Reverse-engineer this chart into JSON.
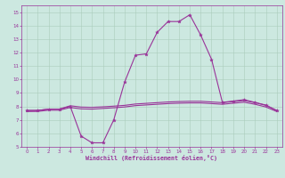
{
  "xlabel": "Windchill (Refroidissement éolien,°C)",
  "xlim": [
    -0.5,
    23.5
  ],
  "ylim": [
    5,
    15.5
  ],
  "xticks": [
    0,
    1,
    2,
    3,
    4,
    5,
    6,
    7,
    8,
    9,
    10,
    11,
    12,
    13,
    14,
    15,
    16,
    17,
    18,
    19,
    20,
    21,
    22,
    23
  ],
  "yticks": [
    5,
    6,
    7,
    8,
    9,
    10,
    11,
    12,
    13,
    14,
    15
  ],
  "background_color": "#cce8e0",
  "line_color": "#993399",
  "grid_color": "#aaccbb",
  "line1_x": [
    0,
    1,
    2,
    3,
    4,
    5,
    6,
    7,
    8,
    9,
    10,
    11,
    12,
    13,
    14,
    15,
    16,
    17,
    18,
    19,
    20,
    21,
    22,
    23
  ],
  "line1_y": [
    7.7,
    7.7,
    7.8,
    7.8,
    8.0,
    5.8,
    5.3,
    5.3,
    7.0,
    9.8,
    11.8,
    11.9,
    13.5,
    14.3,
    14.3,
    14.8,
    13.3,
    11.5,
    8.3,
    8.4,
    8.5,
    8.3,
    8.1,
    7.7
  ],
  "line2_x": [
    0,
    1,
    2,
    3,
    4,
    5,
    6,
    7,
    8,
    9,
    10,
    11,
    12,
    13,
    14,
    15,
    16,
    17,
    18,
    19,
    20,
    21,
    22,
    23
  ],
  "line2_y": [
    7.7,
    7.7,
    7.8,
    7.8,
    8.05,
    7.95,
    7.93,
    7.97,
    8.02,
    8.08,
    8.18,
    8.23,
    8.28,
    8.33,
    8.36,
    8.38,
    8.38,
    8.33,
    8.28,
    8.36,
    8.43,
    8.28,
    8.08,
    7.7
  ],
  "line3_x": [
    0,
    1,
    2,
    3,
    4,
    5,
    6,
    7,
    8,
    9,
    10,
    11,
    12,
    13,
    14,
    15,
    16,
    17,
    18,
    19,
    20,
    21,
    22,
    23
  ],
  "line3_y": [
    7.62,
    7.63,
    7.72,
    7.72,
    7.92,
    7.82,
    7.8,
    7.85,
    7.9,
    7.96,
    8.06,
    8.11,
    8.16,
    8.21,
    8.24,
    8.26,
    8.26,
    8.21,
    8.16,
    8.24,
    8.31,
    8.16,
    7.96,
    7.62
  ]
}
